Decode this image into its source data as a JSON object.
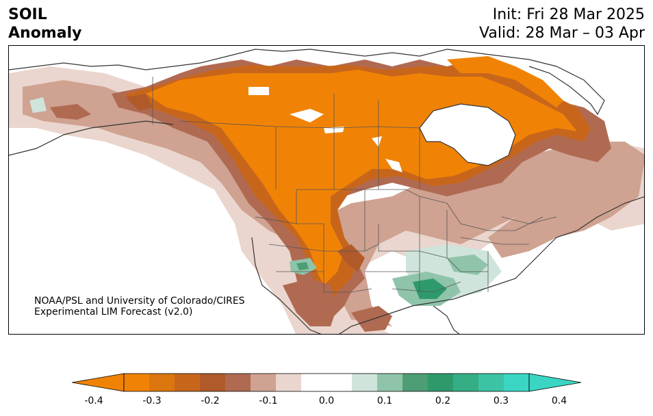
{
  "header": {
    "title_line1": "SOIL",
    "title_line2": "Anomaly",
    "init": "Init: Fri 28 Mar 2025",
    "valid": "Valid: 28 Mar – 03 Apr"
  },
  "map": {
    "credit_line1": "NOAA/PSL and University of Colorado/CIRES",
    "credit_line2": "Experimental LIM Forecast (v2.0)"
  },
  "colorbar": {
    "colors": [
      "#f08306",
      "#dc760e",
      "#c7661b",
      "#b05a2a",
      "#b06a52",
      "#cfa291",
      "#ead6ce",
      "#ffffff",
      "#ffffff",
      "#cfe4da",
      "#8fc4aa",
      "#4d9e74",
      "#2e9a6c",
      "#35ae86",
      "#3cc3a4",
      "#3ad6c3"
    ],
    "min_color": "#f08306",
    "max_color": "#3ad6c3",
    "ticks": [
      "-0.4",
      "-0.3",
      "-0.2",
      "-0.1",
      "0.0",
      "0.1",
      "0.2",
      "0.3",
      "0.4"
    ]
  }
}
